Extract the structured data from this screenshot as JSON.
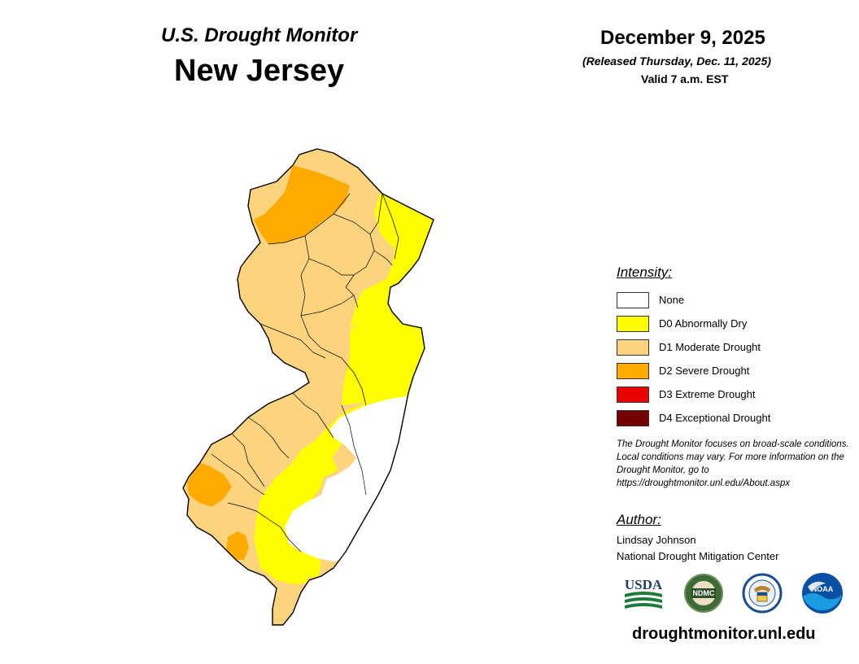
{
  "header": {
    "subtitle": "U.S. Drought Monitor",
    "state": "New Jersey",
    "date": "December 9, 2025",
    "released": "(Released Thursday, Dec. 11, 2025)",
    "valid": "Valid 7 a.m. EST"
  },
  "legend": {
    "title": "Intensity:",
    "items": [
      {
        "label": "None",
        "color": "#ffffff"
      },
      {
        "label": "D0 Abnormally Dry",
        "color": "#ffff00"
      },
      {
        "label": "D1 Moderate Drought",
        "color": "#fcd37f"
      },
      {
        "label": "D2 Severe Drought",
        "color": "#ffaa00"
      },
      {
        "label": "D3 Extreme Drought",
        "color": "#e60000"
      },
      {
        "label": "D4 Exceptional Drought",
        "color": "#730000"
      }
    ]
  },
  "note": "The Drought Monitor focuses on broad-scale conditions. Local conditions may vary. For more information on the Drought Monitor, go to https://droughtmonitor.unl.edu/About.aspx",
  "author": {
    "title": "Author:",
    "name": "Lindsay Johnson",
    "organization": "National Drought Mitigation Center"
  },
  "logos": [
    {
      "name": "USDA",
      "icon": "usda-logo"
    },
    {
      "name": "NDMC",
      "icon": "ndmc-logo"
    },
    {
      "name": "",
      "icon": "commerce-seal"
    },
    {
      "name": "NOAA",
      "icon": "noaa-logo"
    }
  ],
  "website": "droughtmonitor.unl.edu",
  "map_colors": {
    "none": "#ffffff",
    "d0": "#ffff00",
    "d1": "#fcd37f",
    "d2": "#ffaa00",
    "border": "#000000"
  }
}
